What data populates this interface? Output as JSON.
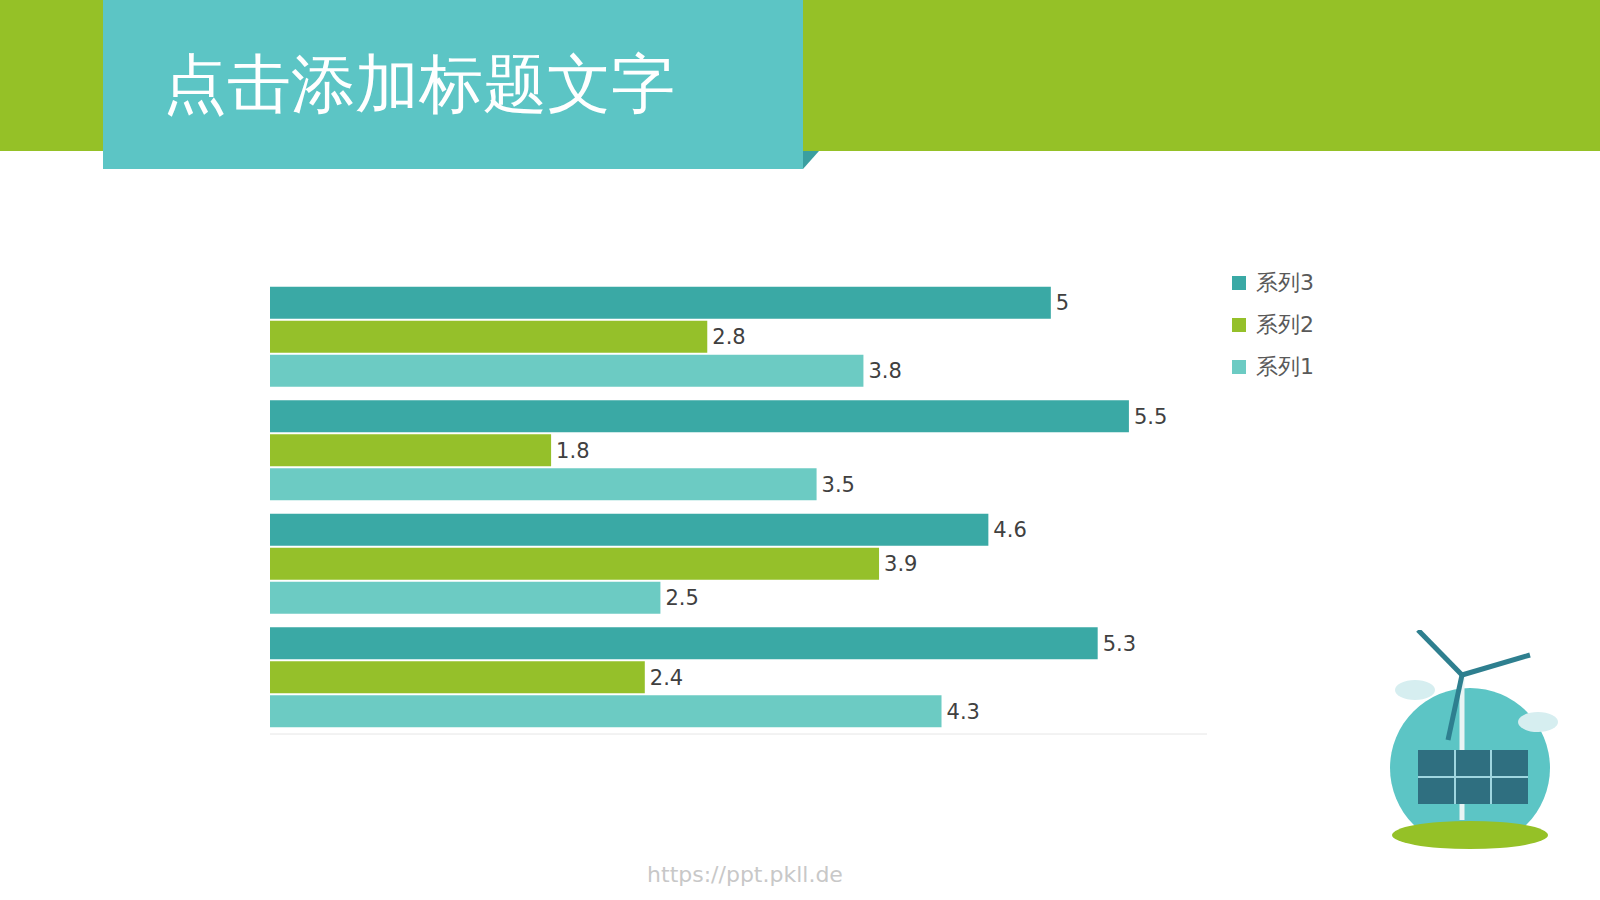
{
  "chart_data": {
    "type": "bar",
    "title": "点击添加标题文字",
    "orientation": "horizontal",
    "data_labels": true,
    "tick_labels": false,
    "grid": false,
    "legend": "right",
    "categories": [
      null,
      null,
      null,
      null
    ],
    "xlim": [
      0,
      6
    ],
    "series": [
      {
        "name": "系列3",
        "color": "#3aa9a5",
        "values": [
          5,
          5.5,
          4.6,
          5.3
        ]
      },
      {
        "name": "系列2",
        "color": "#95c02a",
        "values": [
          2.8,
          1.8,
          3.9,
          2.4
        ]
      },
      {
        "name": "系列1",
        "color": "#6ccbc3",
        "values": [
          3.8,
          3.5,
          2.5,
          4.3
        ]
      }
    ],
    "annotations": [
      "https://ppt.pkll.de"
    ]
  }
}
